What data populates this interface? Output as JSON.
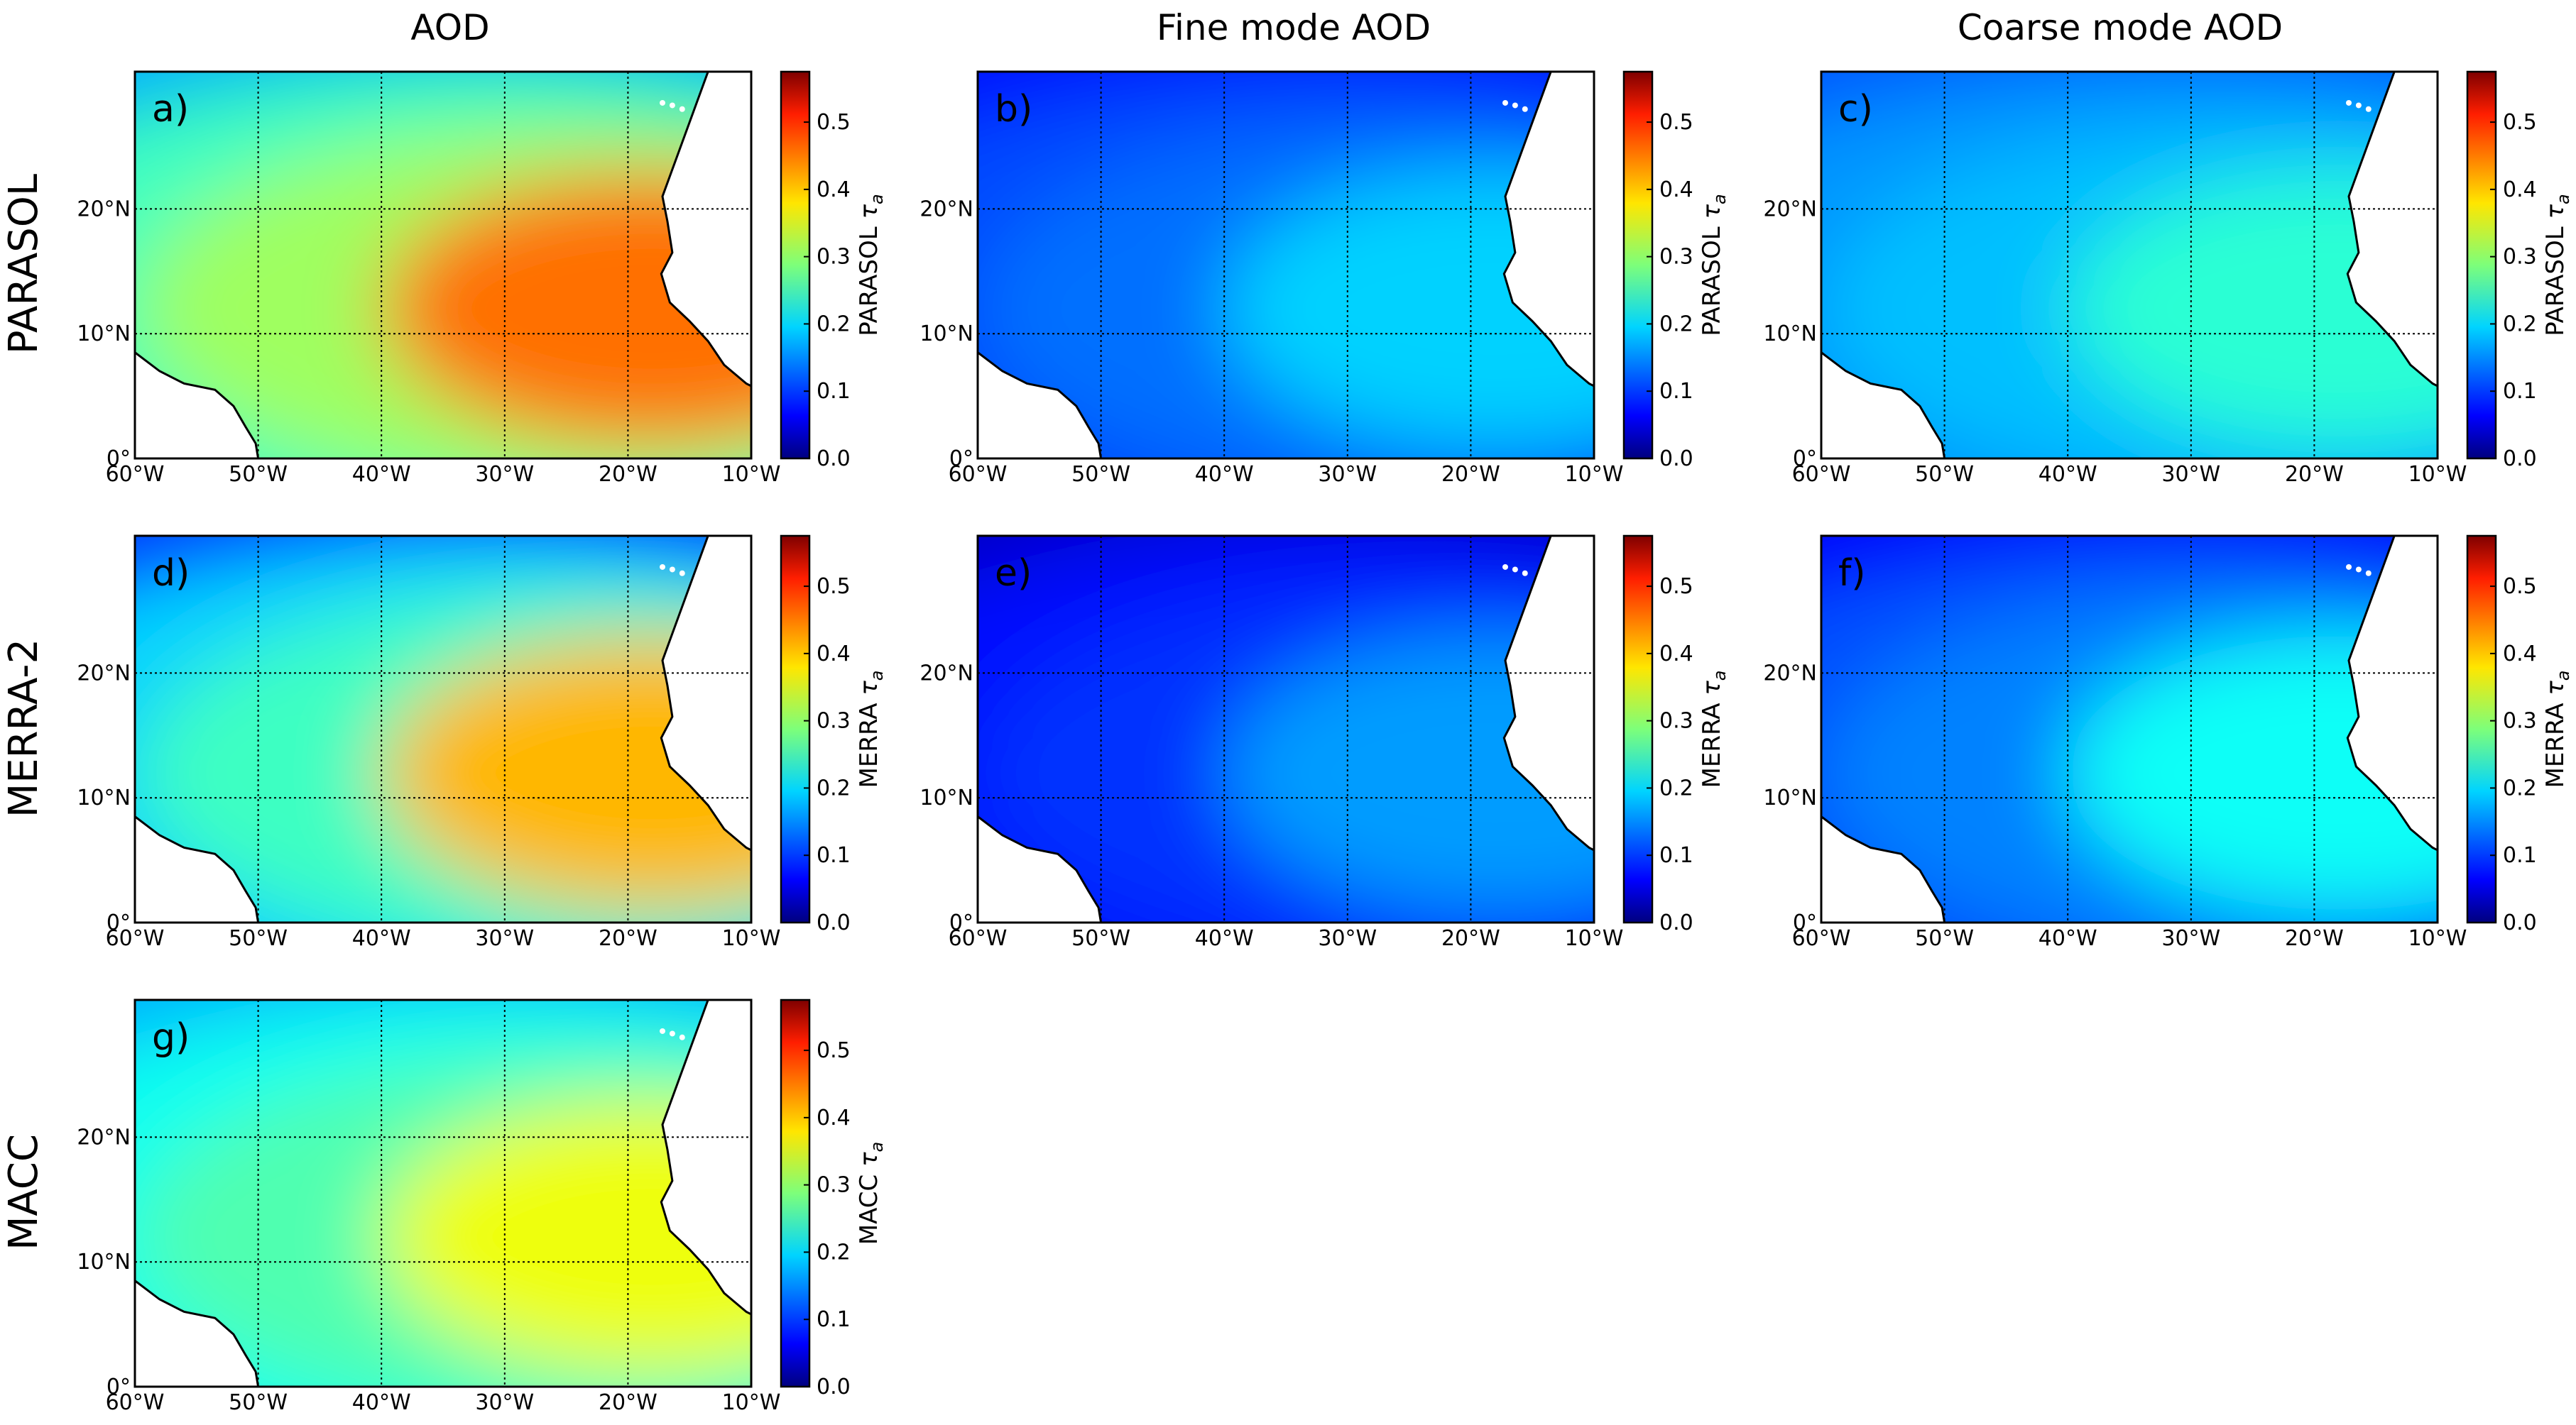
{
  "column_titles": [
    "AOD",
    "Fine mode AOD",
    "Coarse mode AOD"
  ],
  "row_titles": [
    "PARASOL",
    "MERRA-2",
    "MACC"
  ],
  "axes": {
    "lon_ticks": [
      "60°W",
      "50°W",
      "40°W",
      "30°W",
      "20°W",
      "10°W"
    ],
    "lat_ticks": [
      "0°",
      "10°N",
      "20°N"
    ],
    "lon_range": [
      -60,
      -10
    ],
    "lat_range": [
      0,
      31
    ]
  },
  "colorbar": {
    "ticks": [
      "0.0",
      "0.1",
      "0.2",
      "0.3",
      "0.4",
      "0.5"
    ],
    "range": [
      0,
      0.575
    ],
    "colormap": "jet",
    "symbol": "τ"
  },
  "panels": [
    {
      "label": "a)",
      "product": "PARASOL",
      "cb_label": "PARASOL",
      "quantity": "AOD",
      "plume_peak": 0.44,
      "background": 0.17
    },
    {
      "label": "b)",
      "product": "PARASOL",
      "cb_label": "PARASOL",
      "quantity": "Fine mode AOD",
      "plume_peak": 0.19,
      "background": 0.08
    },
    {
      "label": "c)",
      "product": "PARASOL",
      "cb_label": "PARASOL",
      "quantity": "Coarse mode AOD",
      "plume_peak": 0.24,
      "background": 0.12
    },
    {
      "label": "d)",
      "product": "MERRA-2",
      "cb_label": "MERRA",
      "quantity": "AOD",
      "plume_peak": 0.4,
      "background": 0.1
    },
    {
      "label": "e)",
      "product": "MERRA-2",
      "cb_label": "MERRA",
      "quantity": "Fine mode AOD",
      "plume_peak": 0.16,
      "background": 0.04
    },
    {
      "label": "f)",
      "product": "MERRA-2",
      "cb_label": "MERRA",
      "quantity": "Coarse mode AOD",
      "plume_peak": 0.22,
      "background": 0.07
    },
    {
      "label": "g)",
      "product": "MACC",
      "cb_label": "MACC",
      "quantity": "AOD",
      "plume_peak": 0.35,
      "background": 0.17
    }
  ]
}
